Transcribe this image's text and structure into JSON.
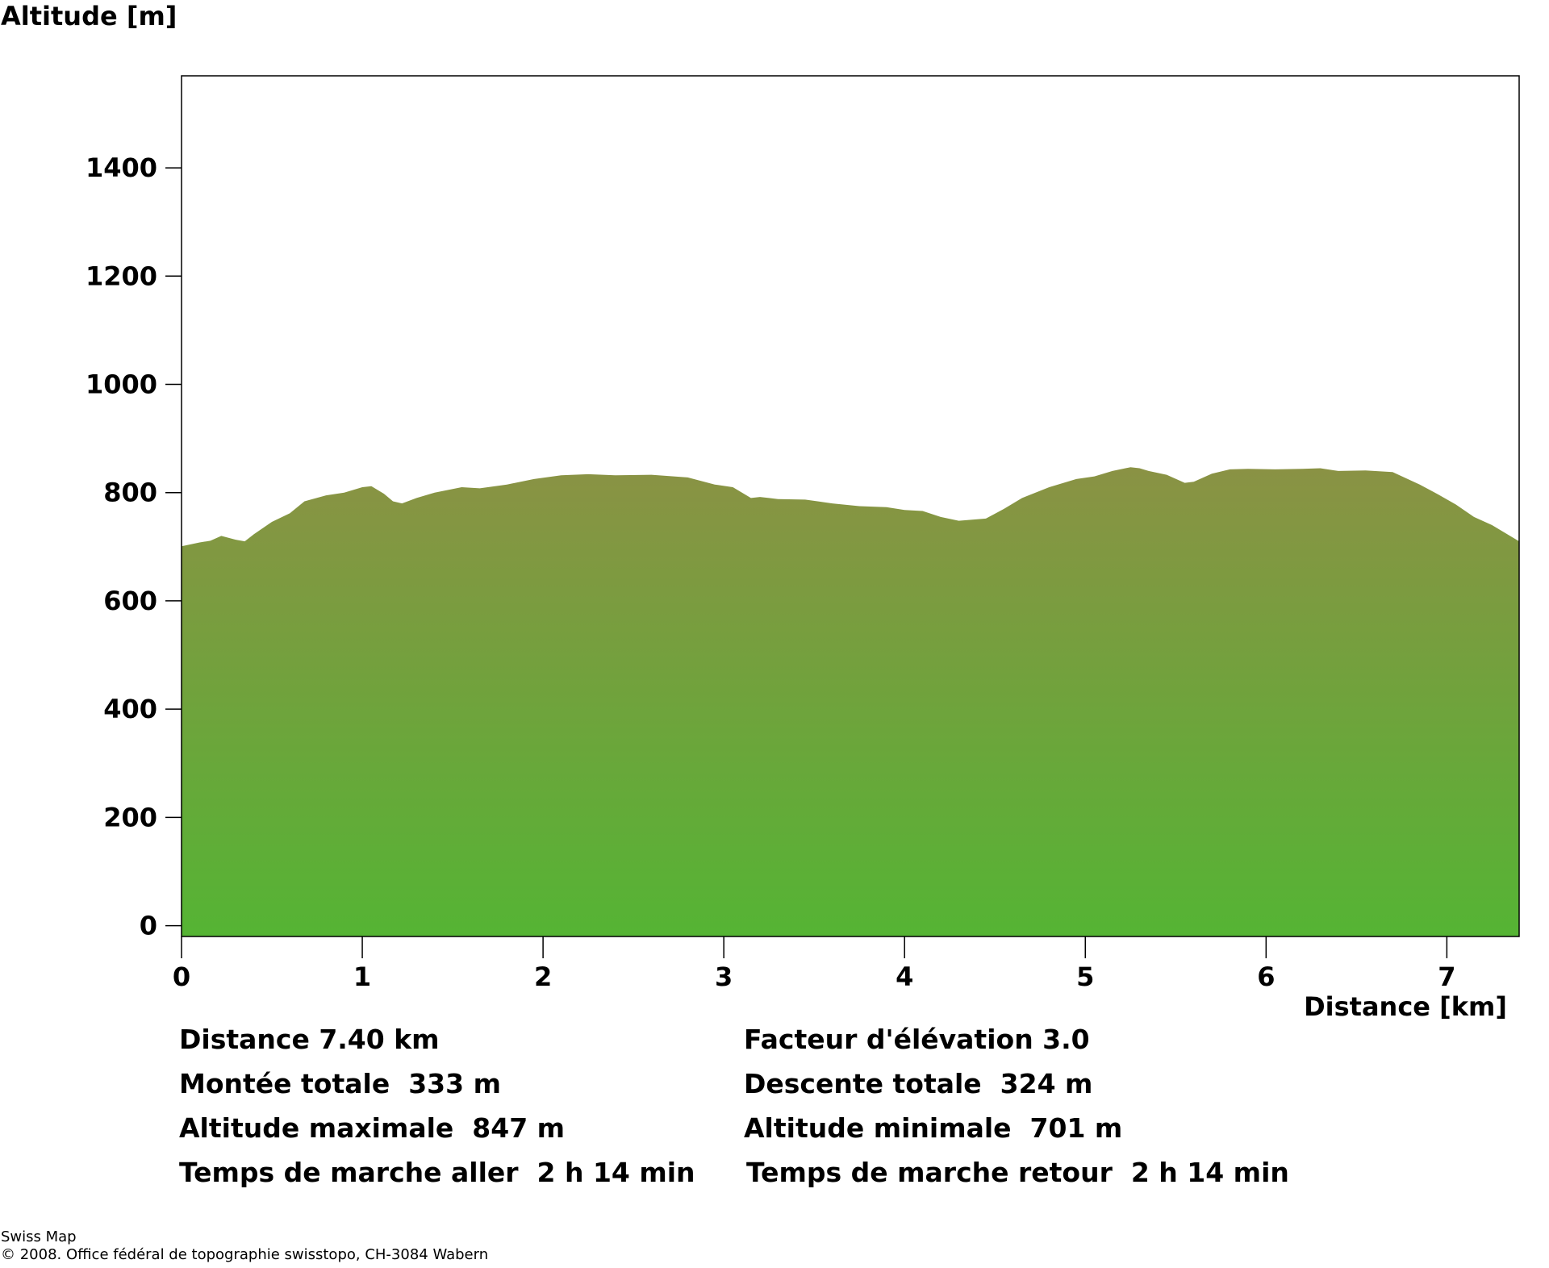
{
  "chart_data": {
    "type": "area",
    "xlabel": "Distance [km]",
    "ylabel": "Altitude [m]",
    "xlim": [
      0,
      7.4
    ],
    "ylim": [
      -20,
      1570
    ],
    "xticks": [
      0,
      1,
      2,
      3,
      4,
      5,
      6,
      7
    ],
    "yticks": [
      0,
      200,
      400,
      600,
      800,
      1000,
      1200,
      1400
    ],
    "grid": false,
    "fill_color_top": "#8a9244",
    "fill_color_bottom": "#55b434",
    "x": [
      0,
      0.1,
      0.16,
      0.22,
      0.3,
      0.35,
      0.4,
      0.5,
      0.6,
      0.68,
      0.8,
      0.9,
      1.0,
      1.05,
      1.12,
      1.17,
      1.22,
      1.3,
      1.4,
      1.55,
      1.65,
      1.8,
      1.95,
      2.1,
      2.25,
      2.4,
      2.6,
      2.8,
      2.95,
      3.05,
      3.15,
      3.2,
      3.25,
      3.3,
      3.45,
      3.6,
      3.75,
      3.9,
      4.0,
      4.1,
      4.2,
      4.3,
      4.45,
      4.55,
      4.65,
      4.8,
      4.95,
      5.05,
      5.15,
      5.25,
      5.3,
      5.35,
      5.45,
      5.55,
      5.6,
      5.7,
      5.8,
      5.9,
      6.05,
      6.2,
      6.3,
      6.4,
      6.55,
      6.7,
      6.85,
      6.95,
      7.05,
      7.15,
      7.25,
      7.4
    ],
    "y": [
      701,
      708,
      711,
      720,
      713,
      710,
      723,
      746,
      762,
      784,
      795,
      800,
      810,
      812,
      798,
      784,
      780,
      790,
      800,
      810,
      808,
      815,
      825,
      832,
      834,
      832,
      833,
      828,
      815,
      810,
      790,
      792,
      790,
      788,
      787,
      780,
      775,
      773,
      768,
      766,
      755,
      748,
      752,
      770,
      790,
      810,
      825,
      830,
      840,
      847,
      845,
      840,
      833,
      818,
      820,
      835,
      843,
      844,
      843,
      844,
      845,
      840,
      841,
      838,
      815,
      797,
      778,
      755,
      740,
      710
    ]
  },
  "stats": {
    "distance": "Distance 7.40 km",
    "elevation_factor": "Facteur d'élévation 3.0",
    "total_ascent": "Montée totale  333 m",
    "total_descent": "Descente totale  324 m",
    "max_altitude": "Altitude maximale  847 m",
    "min_altitude": "Altitude minimale  701 m",
    "walk_time_forward": "Temps de marche aller  2 h 14 min",
    "walk_time_return": "Temps de marche retour  2 h 14 min"
  },
  "footer": {
    "source": "Swiss Map",
    "copyright": "© 2008. Office fédéral de topographie swisstopo, CH-3084 Wabern"
  }
}
